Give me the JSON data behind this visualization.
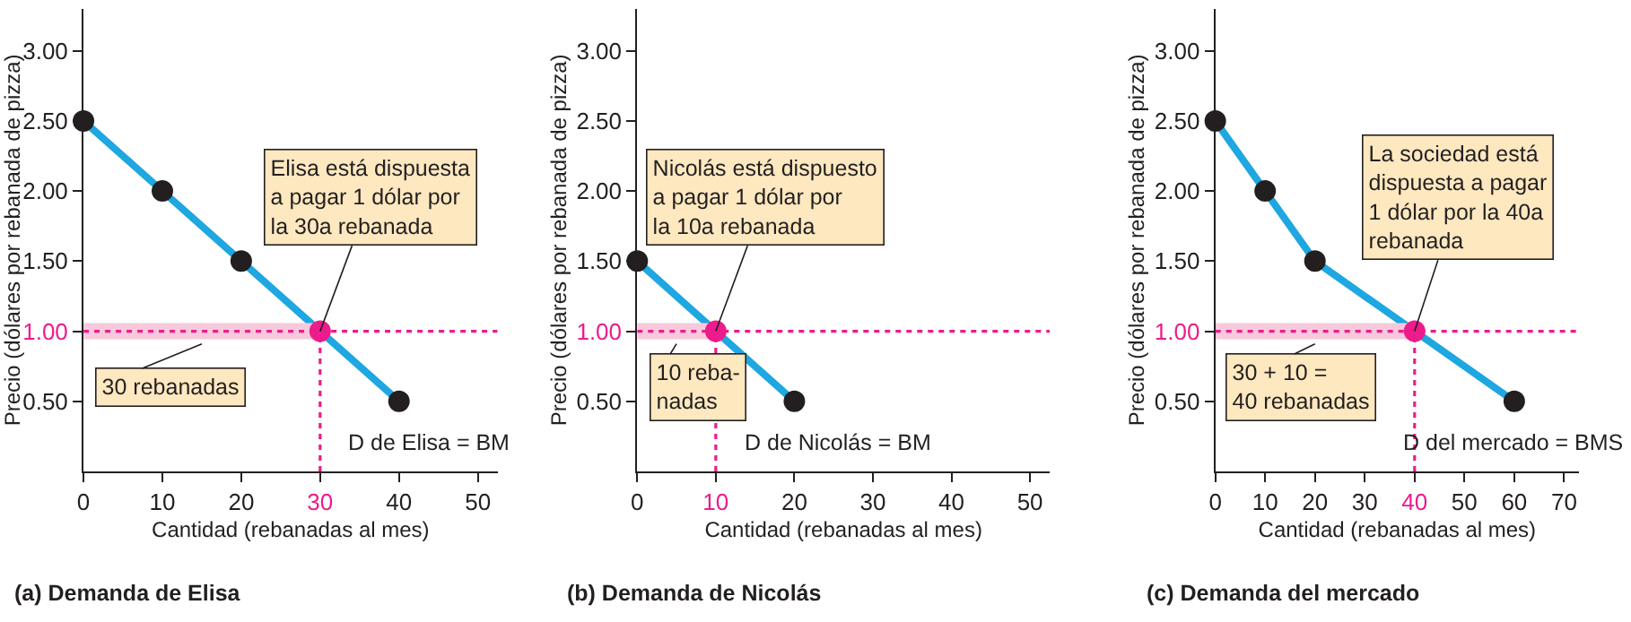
{
  "chart_data": [
    {
      "type": "line",
      "title": "(a) Demanda de Elisa",
      "xlabel": "Cantidad (rebanadas al mes)",
      "ylabel": "Precio (dólares por rebanada de pizza)",
      "xlim": [
        0,
        52.5
      ],
      "ylim": [
        0,
        3.3
      ],
      "xticks": [
        0,
        10,
        20,
        30,
        40,
        50
      ],
      "yticks": [
        {
          "value": 0.5,
          "label": "0.50"
        },
        {
          "value": 1,
          "label": "1.00"
        },
        {
          "value": 1.5,
          "label": "1.50"
        },
        {
          "value": 2,
          "label": "2.00"
        },
        {
          "value": 2.5,
          "label": "2.50"
        },
        {
          "value": 3,
          "label": "3.00"
        }
      ],
      "grid": false,
      "marker": "circle",
      "series": [
        {
          "color": "#1ea7e1",
          "marker": "none",
          "x": [
            0,
            10,
            20,
            40
          ],
          "values": [
            2.5,
            2.0,
            1.5,
            0.5
          ]
        },
        {
          "type": "scatter",
          "color": "#231f20",
          "x": [
            0,
            10,
            20,
            40
          ],
          "values": [
            2.5,
            2.0,
            1.5,
            0.5
          ]
        },
        {
          "type": "scatter",
          "color": "#ec1c8c",
          "x": [
            30
          ],
          "values": [
            1.0
          ],
          "xerrors": [
            [
              30,
              0
            ]
          ]
        }
      ],
      "ref_lines": [
        {
          "axis": "y",
          "value": 1.0,
          "color": "#ec1c8c",
          "line_style": "dotted"
        },
        {
          "axis": "x",
          "value": 30,
          "color": "#ec1c8c",
          "line_style": "dotted"
        }
      ],
      "annotations": [
        {
          "text": "Elisa está dispuesta\na pagar 1 dólar por\nla 30a rebanada",
          "x": 30,
          "y": 1.0
        },
        {
          "text": "30 rebanadas",
          "x": 15,
          "y": 1.0
        },
        {
          "text": "D de Elisa = BM",
          "x": 40,
          "y": 0.5
        }
      ]
    },
    {
      "type": "line",
      "title": "(b) Demanda de Nicolás",
      "xlabel": "Cantidad (rebanadas al mes)",
      "ylabel": "Precio (dólares por rebanada de pizza)",
      "xlim": [
        0,
        52.5
      ],
      "ylim": [
        0,
        3.3
      ],
      "xticks": [
        0,
        10,
        20,
        30,
        40,
        50
      ],
      "yticks": [
        {
          "value": 0.5,
          "label": "0.50"
        },
        {
          "value": 1,
          "label": "1.00"
        },
        {
          "value": 1.5,
          "label": "1.50"
        },
        {
          "value": 2,
          "label": "2.00"
        },
        {
          "value": 2.5,
          "label": "2.50"
        },
        {
          "value": 3,
          "label": "3.00"
        }
      ],
      "grid": false,
      "marker": "circle",
      "series": [
        {
          "color": "#1ea7e1",
          "marker": "none",
          "x": [
            0,
            20
          ],
          "values": [
            1.5,
            0.5
          ]
        },
        {
          "type": "scatter",
          "color": "#231f20",
          "x": [
            0,
            20
          ],
          "values": [
            1.5,
            0.5
          ]
        },
        {
          "type": "scatter",
          "color": "#ec1c8c",
          "x": [
            10
          ],
          "values": [
            1.0
          ],
          "xerrors": [
            [
              10,
              0
            ]
          ]
        }
      ],
      "ref_lines": [
        {
          "axis": "y",
          "value": 1.0,
          "color": "#ec1c8c",
          "line_style": "dotted"
        },
        {
          "axis": "x",
          "value": 10,
          "color": "#ec1c8c",
          "line_style": "dotted"
        }
      ],
      "annotations": [
        {
          "text": "Nicolás está dispuesto\na pagar 1 dólar por\nla 10a rebanada",
          "x": 10,
          "y": 1.0
        },
        {
          "text": "10 reba-\nnadas",
          "x": 5,
          "y": 1.0
        },
        {
          "text": "D de Nicolás = BM",
          "x": 20,
          "y": 0.5
        }
      ]
    },
    {
      "type": "line",
      "title": "(c) Demanda del mercado",
      "xlabel": "Cantidad (rebanadas al mes)",
      "ylabel": "Precio (dólares por rebanada de pizza)",
      "xlim": [
        0,
        73
      ],
      "ylim": [
        0,
        3.3
      ],
      "xticks": [
        0,
        10,
        20,
        30,
        40,
        50,
        60,
        70
      ],
      "yticks": [
        {
          "value": 0.5,
          "label": "0.50"
        },
        {
          "value": 1,
          "label": "1.00"
        },
        {
          "value": 1.5,
          "label": "1.50"
        },
        {
          "value": 2,
          "label": "2.00"
        },
        {
          "value": 2.5,
          "label": "2.50"
        },
        {
          "value": 3,
          "label": "3.00"
        }
      ],
      "grid": false,
      "marker": "circle",
      "series": [
        {
          "color": "#1ea7e1",
          "marker": "none",
          "x": [
            0,
            10,
            20,
            40,
            60
          ],
          "values": [
            2.5,
            2.0,
            1.5,
            1.0,
            0.5
          ]
        },
        {
          "type": "scatter",
          "color": "#231f20",
          "x": [
            0,
            10,
            20,
            60
          ],
          "values": [
            2.5,
            2.0,
            1.5,
            0.5
          ]
        },
        {
          "type": "scatter",
          "color": "#ec1c8c",
          "x": [
            40
          ],
          "values": [
            1.0
          ],
          "xerrors": [
            [
              40,
              0
            ]
          ]
        }
      ],
      "ref_lines": [
        {
          "axis": "y",
          "value": 1.0,
          "color": "#ec1c8c",
          "line_style": "dotted"
        },
        {
          "axis": "x",
          "value": 40,
          "color": "#ec1c8c",
          "line_style": "dotted"
        }
      ],
      "annotations": [
        {
          "text": "La sociedad está\ndispuesta a pagar\n1 dólar por la 40a\nrebanada",
          "x": 40,
          "y": 1.0
        },
        {
          "text": "30 + 10 =\n40 rebanadas",
          "x": 20,
          "y": 1.0
        },
        {
          "text": "D del mercado = BMS",
          "x": 60,
          "y": 0.5
        }
      ]
    }
  ]
}
